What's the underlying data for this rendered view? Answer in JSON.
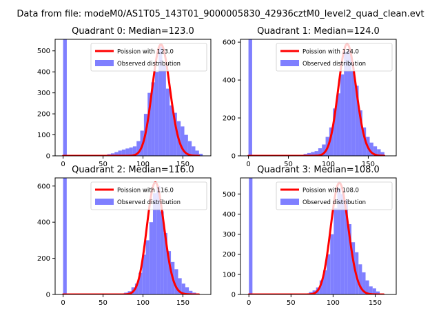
{
  "figure": {
    "suptitle": "Data from file: modeM0/AS1T05_143T01_9000005830_42936cztM0_level2_quad_clean.evt"
  },
  "colors": {
    "hist": "#7f7fff",
    "curve": "#ff0000",
    "axis": "#000000"
  },
  "chart_data": [
    {
      "type": "bar",
      "quadrant": 0,
      "title": "Quadrant 0: Median=123.0",
      "median": 123.0,
      "xlabel": "",
      "ylabel": "",
      "xlim": [
        -10,
        185
      ],
      "ylim": [
        0,
        555
      ],
      "xticks": [
        0,
        50,
        100,
        150
      ],
      "yticks": [
        0,
        100,
        200,
        300,
        400,
        500
      ],
      "legend": [
        "Poission with 123.0",
        "Observed distribution"
      ],
      "legend_loc": "upper right",
      "bin_width": 4.6,
      "bins": [
        [
          0,
          555
        ],
        [
          55.2,
          8
        ],
        [
          59.8,
          12
        ],
        [
          64.4,
          18
        ],
        [
          69,
          25
        ],
        [
          73.6,
          30
        ],
        [
          78.2,
          35
        ],
        [
          82.8,
          40
        ],
        [
          87.4,
          45
        ],
        [
          92,
          70
        ],
        [
          96.6,
          120
        ],
        [
          101.2,
          200
        ],
        [
          105.8,
          300
        ],
        [
          110.4,
          350
        ],
        [
          115,
          400
        ],
        [
          119.6,
          520
        ],
        [
          124.2,
          430
        ],
        [
          128.8,
          320
        ],
        [
          133.4,
          240
        ],
        [
          138,
          205
        ],
        [
          142.6,
          165
        ],
        [
          147.2,
          140
        ],
        [
          151.8,
          100
        ],
        [
          156.4,
          70
        ],
        [
          161,
          45
        ],
        [
          165.6,
          25
        ],
        [
          170.2,
          10
        ]
      ],
      "curve": {
        "label": "Poission with 123.0",
        "lambda": 123.0,
        "amplitude": 530,
        "x_range": [
          0,
          170
        ]
      }
    },
    {
      "type": "bar",
      "quadrant": 1,
      "title": "Quadrant 1: Median=124.0",
      "median": 124.0,
      "xlabel": "",
      "ylabel": "",
      "xlim": [
        -10,
        185
      ],
      "ylim": [
        0,
        615
      ],
      "xticks": [
        0,
        50,
        100,
        150
      ],
      "yticks": [
        0,
        200,
        400,
        600
      ],
      "legend": [
        "Poission with 124.0",
        "Observed distribution"
      ],
      "legend_loc": "upper right",
      "bin_width": 4.6,
      "bins": [
        [
          0,
          615
        ],
        [
          64.4,
          5
        ],
        [
          69,
          10
        ],
        [
          73.6,
          15
        ],
        [
          78.2,
          20
        ],
        [
          82.8,
          25
        ],
        [
          87.4,
          40
        ],
        [
          92,
          60
        ],
        [
          96.6,
          100
        ],
        [
          101.2,
          150
        ],
        [
          105.8,
          250
        ],
        [
          110.4,
          330
        ],
        [
          115,
          430
        ],
        [
          119.6,
          550
        ],
        [
          124.2,
          560
        ],
        [
          128.8,
          450
        ],
        [
          133.4,
          370
        ],
        [
          138,
          240
        ],
        [
          142.6,
          150
        ],
        [
          147.2,
          100
        ],
        [
          151.8,
          70
        ],
        [
          156.4,
          50
        ],
        [
          161,
          35
        ],
        [
          165.6,
          20
        ]
      ],
      "curve": {
        "label": "Poission with 124.0",
        "lambda": 124.0,
        "amplitude": 590,
        "x_range": [
          0,
          170
        ]
      }
    },
    {
      "type": "bar",
      "quadrant": 2,
      "title": "Quadrant 2: Median=116.0",
      "median": 116.0,
      "xlabel": "",
      "ylabel": "",
      "xlim": [
        -10,
        185
      ],
      "ylim": [
        0,
        645
      ],
      "xticks": [
        0,
        50,
        100,
        150
      ],
      "yticks": [
        0,
        200,
        400,
        600
      ],
      "legend": [
        "Poission with 116.0",
        "Observed distribution"
      ],
      "legend_loc": "upper right",
      "bin_width": 4.5,
      "bins": [
        [
          0,
          645
        ],
        [
          72,
          5
        ],
        [
          76.5,
          10
        ],
        [
          81,
          18
        ],
        [
          85.5,
          40
        ],
        [
          90,
          60
        ],
        [
          94.5,
          120
        ],
        [
          99,
          220
        ],
        [
          103.5,
          300
        ],
        [
          108,
          400
        ],
        [
          112.5,
          560
        ],
        [
          117,
          600
        ],
        [
          121.5,
          460
        ],
        [
          126,
          340
        ],
        [
          130.5,
          240
        ],
        [
          135,
          180
        ],
        [
          139.5,
          140
        ],
        [
          144,
          90
        ],
        [
          148.5,
          60
        ],
        [
          153,
          40
        ],
        [
          157.5,
          20
        ],
        [
          162,
          10
        ]
      ],
      "curve": {
        "label": "Poission with 116.0",
        "lambda": 116.0,
        "amplitude": 620,
        "x_range": [
          0,
          170
        ]
      }
    },
    {
      "type": "bar",
      "quadrant": 3,
      "title": "Quadrant 3: Median=108.0",
      "median": 108.0,
      "xlabel": "",
      "ylabel": "",
      "xlim": [
        -10,
        175
      ],
      "ylim": [
        0,
        580
      ],
      "xticks": [
        0,
        50,
        100,
        150
      ],
      "yticks": [
        0,
        100,
        200,
        300,
        400,
        500
      ],
      "legend": [
        "Poission with 108.0",
        "Observed distribution"
      ],
      "legend_loc": "upper right",
      "bin_width": 4.2,
      "bins": [
        [
          0,
          580
        ],
        [
          67.2,
          5
        ],
        [
          71.4,
          12
        ],
        [
          75.6,
          20
        ],
        [
          79.8,
          35
        ],
        [
          84,
          70
        ],
        [
          88.2,
          120
        ],
        [
          92.4,
          200
        ],
        [
          96.6,
          300
        ],
        [
          100.8,
          430
        ],
        [
          105,
          530
        ],
        [
          109.2,
          500
        ],
        [
          113.4,
          470
        ],
        [
          117.6,
          350
        ],
        [
          121.8,
          260
        ],
        [
          126,
          210
        ],
        [
          130.2,
          150
        ],
        [
          134.4,
          110
        ],
        [
          138.6,
          70
        ],
        [
          142.8,
          40
        ],
        [
          147,
          30
        ],
        [
          151.2,
          15
        ],
        [
          155.4,
          5
        ]
      ],
      "curve": {
        "label": "Poission with 108.0",
        "lambda": 108.0,
        "amplitude": 555,
        "x_range": [
          0,
          160
        ]
      }
    }
  ]
}
